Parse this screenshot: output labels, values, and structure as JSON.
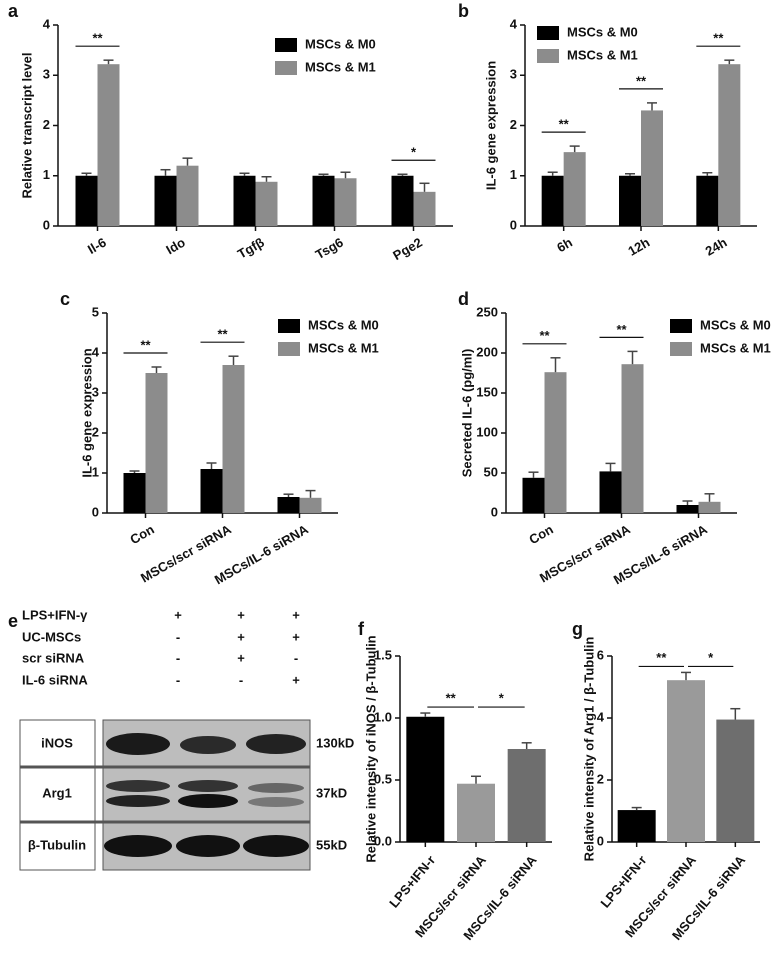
{
  "chart_data": [
    {
      "type": "bar",
      "panel": "a",
      "ylabel": "Relative transcript level",
      "categories": [
        "Il-6",
        "Ido",
        "Tgfβ",
        "Tsg6",
        "Pge2"
      ],
      "series": [
        {
          "name": "MSCs & M0",
          "color": "#000000",
          "values": [
            1,
            1,
            1,
            1,
            1
          ],
          "errors": [
            0.05,
            0.12,
            0.05,
            0.03,
            0.03
          ]
        },
        {
          "name": "MSCs & M1",
          "color": "#8c8c8c",
          "values": [
            3.22,
            1.2,
            0.88,
            0.95,
            0.68
          ],
          "errors": [
            0.08,
            0.15,
            0.1,
            0.12,
            0.17
          ]
        }
      ],
      "significance": [
        "**",
        null,
        null,
        null,
        "*"
      ],
      "ylim": [
        0,
        4
      ],
      "yticks": [
        0,
        1,
        2,
        3,
        4
      ]
    },
    {
      "type": "bar",
      "panel": "b",
      "ylabel": "IL-6 gene expression",
      "categories": [
        "6h",
        "12h",
        "24h"
      ],
      "series": [
        {
          "name": "MSCs & M0",
          "color": "#000000",
          "values": [
            1,
            1,
            1
          ],
          "errors": [
            0.07,
            0.04,
            0.06
          ]
        },
        {
          "name": "MSCs & M1",
          "color": "#8c8c8c",
          "values": [
            1.47,
            2.3,
            3.22
          ],
          "errors": [
            0.12,
            0.15,
            0.08
          ]
        }
      ],
      "significance": [
        "**",
        "**",
        "**"
      ],
      "ylim": [
        0,
        4
      ],
      "yticks": [
        0,
        1,
        2,
        3,
        4
      ]
    },
    {
      "type": "bar",
      "panel": "c",
      "ylabel": "IL-6 gene expression",
      "categories": [
        "Con",
        "MSCs/scr siRNA",
        "MSCs/IL-6 siRNA"
      ],
      "series": [
        {
          "name": "MSCs & M0",
          "color": "#000000",
          "values": [
            1.0,
            1.1,
            0.4
          ],
          "errors": [
            0.05,
            0.15,
            0.07
          ]
        },
        {
          "name": "MSCs & M1",
          "color": "#8c8c8c",
          "values": [
            3.5,
            3.7,
            0.38
          ],
          "errors": [
            0.15,
            0.22,
            0.18
          ]
        }
      ],
      "significance": [
        "**",
        "**",
        null
      ],
      "ylim": [
        0,
        5
      ],
      "yticks": [
        0,
        1,
        2,
        3,
        4,
        5
      ]
    },
    {
      "type": "bar",
      "panel": "d",
      "ylabel": "Secreted IL-6 (pg/ml)",
      "categories": [
        "Con",
        "MSCs/scr siRNA",
        "MSCs/IL-6 siRNA"
      ],
      "series": [
        {
          "name": "MSCs & M0",
          "color": "#000000",
          "values": [
            44,
            52,
            10
          ],
          "errors": [
            7,
            10,
            5
          ]
        },
        {
          "name": "MSCs & M1",
          "color": "#8c8c8c",
          "values": [
            176,
            186,
            14
          ],
          "errors": [
            18,
            16,
            10
          ]
        }
      ],
      "significance": [
        "**",
        "**",
        null
      ],
      "ylim": [
        0,
        250
      ],
      "yticks": [
        0,
        50,
        100,
        150,
        200,
        250
      ]
    },
    {
      "type": "bar",
      "panel": "f",
      "ylabel": "Relative intensity of iNOS / β-Tubulin",
      "categories": [
        "LPS+IFN-r",
        "MSCs/scr siRNA",
        "MSCs/IL-6 siRNA"
      ],
      "values": [
        1.01,
        0.47,
        0.75
      ],
      "errors": [
        0.03,
        0.06,
        0.05
      ],
      "colors": [
        "#000000",
        "#9a9a9a",
        "#6e6e6e"
      ],
      "pair_significance": [
        "**",
        "*"
      ],
      "ylim": [
        0,
        1.5
      ],
      "yticks": [
        {
          "value": 0,
          "label": "0.0"
        },
        {
          "value": 0.5,
          "label": "0.5"
        },
        {
          "value": 1,
          "label": "1.0"
        },
        {
          "value": 1.5,
          "label": "1.5"
        }
      ]
    },
    {
      "type": "bar",
      "panel": "g",
      "ylabel": "Relative intensity of Arg1 / β-Tubulin",
      "categories": [
        "LPS+IFN-r",
        "MSCs/scr siRNA",
        "MSCs/IL-6 siRNA"
      ],
      "values": [
        1.03,
        5.22,
        3.95
      ],
      "errors": [
        0.08,
        0.25,
        0.35
      ],
      "colors": [
        "#000000",
        "#9a9a9a",
        "#6e6e6e"
      ],
      "pair_significance": [
        "**",
        "*"
      ],
      "ylim": [
        0,
        6
      ],
      "yticks": [
        0,
        2,
        4,
        6
      ]
    }
  ],
  "blot": {
    "panel": "e",
    "conditions": [
      {
        "label": "LPS+IFN-γ",
        "marks": [
          "+",
          "+",
          "+"
        ]
      },
      {
        "label": "UC-MSCs",
        "marks": [
          "-",
          "+",
          "+"
        ]
      },
      {
        "label": "scr siRNA",
        "marks": [
          "-",
          "+",
          "-"
        ]
      },
      {
        "label": "IL-6 siRNA",
        "marks": [
          "-",
          "-",
          "+"
        ]
      }
    ],
    "bands": [
      {
        "name": "iNOS",
        "size": "130kD"
      },
      {
        "name": "Arg1",
        "size": "37kD"
      },
      {
        "name": "β-Tubulin",
        "size": "55kD"
      }
    ]
  }
}
